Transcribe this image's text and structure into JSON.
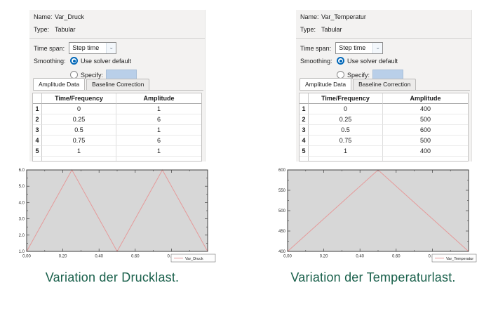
{
  "panels": [
    {
      "name_label": "Name:",
      "name_value": "Var_Druck",
      "type_label": "Type:",
      "type_value": "Tabular",
      "time_span_label": "Time span:",
      "time_span_value": "Step time",
      "smoothing_label": "Smoothing:",
      "radio_default_label": "Use solver default",
      "radio_specify_label": "Specify:",
      "specify_value": "",
      "tabs": [
        "Amplitude Data",
        "Baseline Correction"
      ],
      "table": {
        "headers": [
          "Time/Frequency",
          "Amplitude"
        ],
        "rows": [
          [
            "1",
            "0",
            "1"
          ],
          [
            "2",
            "0.25",
            "6"
          ],
          [
            "3",
            "0.5",
            "1"
          ],
          [
            "4",
            "0.75",
            "6"
          ],
          [
            "5",
            "1",
            "1"
          ]
        ]
      },
      "caption": "Variation der Drucklast."
    },
    {
      "name_label": "Name:",
      "name_value": "Var_Temperatur",
      "type_label": "Type:",
      "type_value": "Tabular",
      "time_span_label": "Time span:",
      "time_span_value": "Step time",
      "smoothing_label": "Smoothing:",
      "radio_default_label": "Use solver default",
      "radio_specify_label": "Specify:",
      "specify_value": "",
      "tabs": [
        "Amplitude Data",
        "Baseline Correction"
      ],
      "table": {
        "headers": [
          "Time/Frequency",
          "Amplitude"
        ],
        "rows": [
          [
            "1",
            "0",
            "400"
          ],
          [
            "2",
            "0.25",
            "500"
          ],
          [
            "3",
            "0.5",
            "600"
          ],
          [
            "4",
            "0.75",
            "500"
          ],
          [
            "5",
            "1",
            "400"
          ]
        ]
      },
      "caption": "Variation der Temperaturlast."
    }
  ],
  "chart_data": [
    {
      "type": "line",
      "title": "",
      "xlabel": "",
      "ylabel": "",
      "x": [
        0,
        0.25,
        0.5,
        0.75,
        1
      ],
      "series": [
        {
          "name": "Var_Druck",
          "values": [
            1,
            6,
            1,
            6,
            1
          ]
        }
      ],
      "xlim": [
        0,
        1
      ],
      "ylim": [
        1,
        6
      ],
      "xticks": {
        "major": [
          0,
          0.2,
          0.4,
          0.6,
          0.8,
          1
        ],
        "labels": [
          "0.00",
          "0.20",
          "0.40",
          "0.60",
          "0.80",
          "1.00"
        ],
        "minor_step": 0.1
      },
      "yticks": {
        "major": [
          1,
          2,
          3,
          4,
          5,
          6
        ],
        "labels": [
          "1.0",
          "2.0",
          "3.0",
          "4.0",
          "5.0",
          "6.0"
        ],
        "minor_step": 0.5
      },
      "grid": false,
      "legend_position": "lower-right-outside",
      "line_color": "#e59a9a",
      "plot_bg": "#d7d7d7",
      "axis_color": "#3f3f3f"
    },
    {
      "type": "line",
      "title": "",
      "xlabel": "",
      "ylabel": "",
      "x": [
        0,
        0.25,
        0.5,
        0.75,
        1
      ],
      "series": [
        {
          "name": "Var_Temperatur",
          "values": [
            400,
            500,
            600,
            500,
            400
          ]
        }
      ],
      "xlim": [
        0,
        1
      ],
      "ylim": [
        400,
        600
      ],
      "xticks": {
        "major": [
          0,
          0.2,
          0.4,
          0.6,
          0.8,
          1
        ],
        "labels": [
          "0.00",
          "0.20",
          "0.40",
          "0.60",
          "0.80",
          "1.00"
        ],
        "minor_step": 0.1
      },
      "yticks": {
        "major": [
          400,
          450,
          500,
          550,
          600
        ],
        "labels": [
          "400",
          "450",
          "500",
          "550",
          "600"
        ],
        "minor_step": 25
      },
      "grid": false,
      "legend_position": "lower-right-outside",
      "line_color": "#e59a9a",
      "plot_bg": "#d7d7d7",
      "axis_color": "#3f3f3f"
    }
  ],
  "colors": {
    "radio_accent": "#0067b8",
    "specify_field_bg": "#b9cfe9",
    "caption_text": "#19604b",
    "plot_line": "#e59a9a",
    "plot_background": "#d7d7d7",
    "dialog_background": "#f3f2f1"
  }
}
